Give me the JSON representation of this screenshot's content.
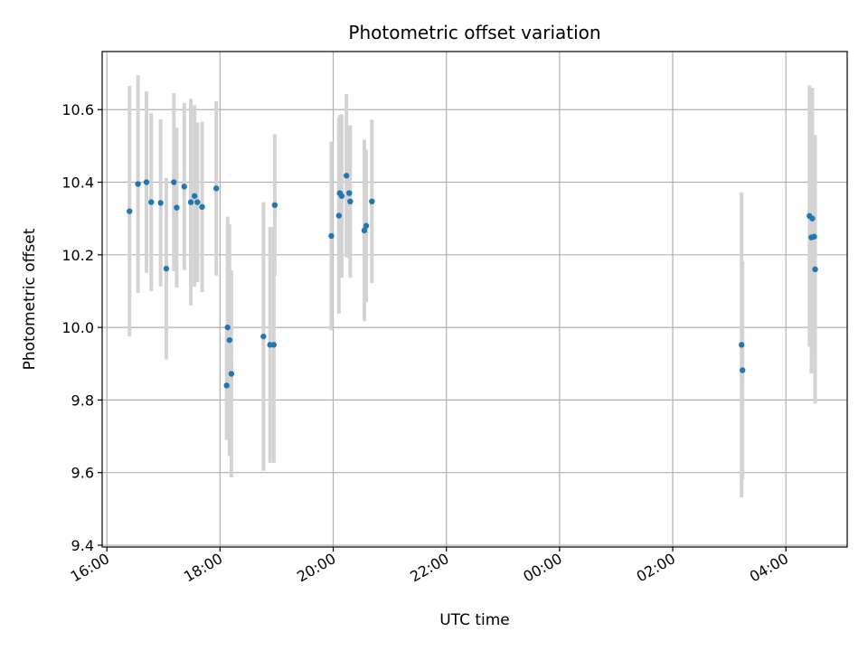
{
  "chart_data": {
    "type": "scatter",
    "title": "Photometric offset variation",
    "xlabel": "UTC time",
    "ylabel": "Photometric offset",
    "grid": true,
    "x_start": "16:00",
    "x_end": "05:05",
    "xlim": [
      "15:55",
      "05:05"
    ],
    "ylim": [
      9.395,
      10.76
    ],
    "x_ticks": [
      "16:00",
      "18:00",
      "20:00",
      "22:00",
      "00:00",
      "02:00",
      "04:00"
    ],
    "y_ticks": [
      "9.4",
      "9.6",
      "9.8",
      "10.0",
      "10.2",
      "10.4",
      "10.6"
    ],
    "colors": {
      "point": "#1f77b4",
      "errorbar": "#d3d3d3",
      "grid": "#b0b0b0"
    },
    "points": [
      {
        "x": "16:24",
        "y": 10.32,
        "err": 0.345
      },
      {
        "x": "16:33",
        "y": 10.395,
        "err": 0.3
      },
      {
        "x": "16:42",
        "y": 10.4,
        "err": 0.25
      },
      {
        "x": "16:47",
        "y": 10.345,
        "err": 0.245
      },
      {
        "x": "16:57",
        "y": 10.343,
        "err": 0.23
      },
      {
        "x": "17:03",
        "y": 10.162,
        "err": 0.25
      },
      {
        "x": "17:11",
        "y": 10.4,
        "err": 0.245
      },
      {
        "x": "17:14",
        "y": 10.33,
        "err": 0.22
      },
      {
        "x": "17:22",
        "y": 10.388,
        "err": 0.23
      },
      {
        "x": "17:29",
        "y": 10.345,
        "err": 0.285
      },
      {
        "x": "17:33",
        "y": 10.362,
        "err": 0.25
      },
      {
        "x": "17:36",
        "y": 10.345,
        "err": 0.22
      },
      {
        "x": "17:41",
        "y": 10.332,
        "err": 0.235
      },
      {
        "x": "17:56",
        "y": 10.383,
        "err": 0.24
      },
      {
        "x": "18:07",
        "y": 9.84,
        "err": 0.15
      },
      {
        "x": "18:08",
        "y": 10.0,
        "err": 0.305
      },
      {
        "x": "18:10",
        "y": 9.965,
        "err": 0.32
      },
      {
        "x": "18:12",
        "y": 9.872,
        "err": 0.285
      },
      {
        "x": "18:46",
        "y": 9.975,
        "err": 0.37
      },
      {
        "x": "18:53",
        "y": 9.952,
        "err": 0.325
      },
      {
        "x": "18:57",
        "y": 9.952,
        "err": 0.325
      },
      {
        "x": "18:58",
        "y": 10.337,
        "err": 0.195
      },
      {
        "x": "19:58",
        "y": 10.252,
        "err": 0.26
      },
      {
        "x": "20:06",
        "y": 10.308,
        "err": 0.27
      },
      {
        "x": "20:07",
        "y": 10.37,
        "err": 0.215
      },
      {
        "x": "20:09",
        "y": 10.362,
        "err": 0.225
      },
      {
        "x": "20:14",
        "y": 10.418,
        "err": 0.225
      },
      {
        "x": "20:17",
        "y": 10.37,
        "err": 0.18
      },
      {
        "x": "20:18",
        "y": 10.347,
        "err": 0.21
      },
      {
        "x": "20:33",
        "y": 10.267,
        "err": 0.25
      },
      {
        "x": "20:35",
        "y": 10.28,
        "err": 0.21
      },
      {
        "x": "20:41",
        "y": 10.347,
        "err": 0.225
      },
      {
        "x": "03:13",
        "y": 9.952,
        "err": 0.42
      },
      {
        "x": "03:14",
        "y": 9.882,
        "err": 0.3
      },
      {
        "x": "04:25",
        "y": 10.307,
        "err": 0.36
      },
      {
        "x": "04:27",
        "y": 10.248,
        "err": 0.375
      },
      {
        "x": "04:28",
        "y": 10.3,
        "err": 0.36
      },
      {
        "x": "04:30",
        "y": 10.25,
        "err": 0.275
      },
      {
        "x": "04:31",
        "y": 10.16,
        "err": 0.37
      }
    ]
  }
}
